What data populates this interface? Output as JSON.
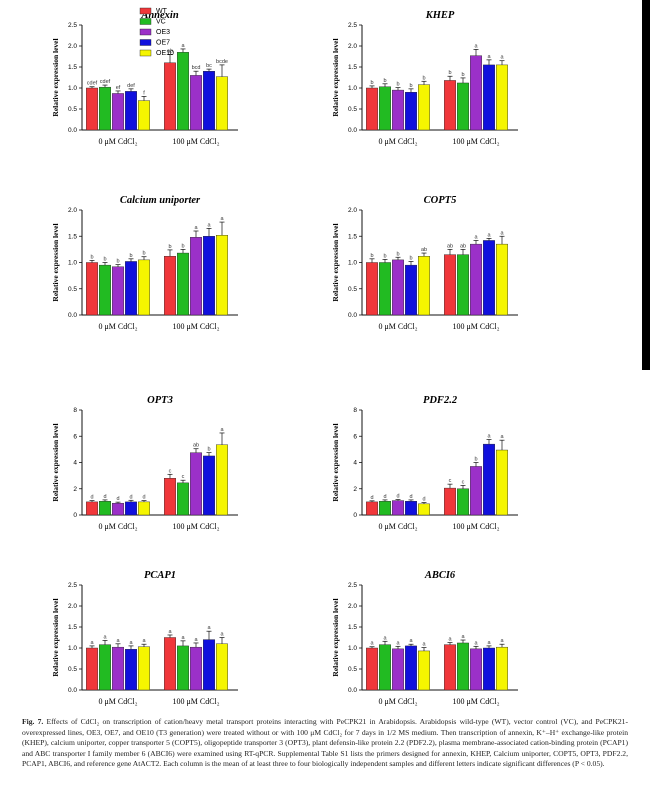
{
  "figure": {
    "legend": [
      {
        "label": "WT",
        "color": "#f0373a"
      },
      {
        "label": "VC",
        "color": "#22bb22"
      },
      {
        "label": "OE3",
        "color": "#9b30c8"
      },
      {
        "label": "OE7",
        "color": "#1010dd"
      },
      {
        "label": "OE10",
        "color": "#f5f500"
      }
    ],
    "caption": {
      "label": "Fig. 7.",
      "text": "Effects of CdCl₂ on transcription of cation/heavy metal transport proteins interacting with PeCPK21 in Arabidopsis. Arabidopsis wild-type (WT), vector control (VC), and PeCPK21-overexpressed lines, OE3, OE7, and OE10 (T3 generation) were treated without or with 100 μM CdCl₂ for 7 days in 1/2 MS medium. Then transcription of annexin, K⁺–H⁺ exchange-like protein (KHEP), calcium uniporter, copper transporter 5 (COPT5), oligopeptide transporter 3 (OPT3), plant defensin-like protein 2.2 (PDF2.2), plasma membrane-associated cation-binding protein (PCAP1) and ABC transporter I family member 6 (ABCI6) were examined using RT-qPCR. Supplemental Table S1 lists the primers designed for annexin, KHEP, Calcium uniporter, COPT5, OPT3, PDF2.2, PCAP1, ABCI6, and reference gene AtACT2. Each column is the mean of at least three to four biologically independent samples and different letters indicate significant differences (P < 0.05)."
    }
  },
  "chart_data": [
    {
      "type": "bar",
      "title": "Annexin",
      "ylabel": "Relative expression level",
      "categories": [
        "0 μM CdCl₂",
        "100 μM CdCl₂"
      ],
      "ylim": [
        0,
        2.5
      ],
      "yticks": [
        "0.0",
        "0.5",
        "1.0",
        "1.5",
        "2.0",
        "2.5"
      ],
      "series": [
        {
          "name": "WT",
          "values": [
            1.0,
            1.6
          ],
          "errors": [
            0.03,
            0.2
          ],
          "letters": [
            "cdef",
            "ab"
          ]
        },
        {
          "name": "VC",
          "values": [
            1.02,
            1.85
          ],
          "errors": [
            0.05,
            0.08
          ],
          "letters": [
            "cdef",
            "a"
          ]
        },
        {
          "name": "OE3",
          "values": [
            0.87,
            1.3
          ],
          "errors": [
            0.06,
            0.1
          ],
          "letters": [
            "ef",
            "bcd"
          ]
        },
        {
          "name": "OE7",
          "values": [
            0.92,
            1.4
          ],
          "errors": [
            0.06,
            0.05
          ],
          "letters": [
            "def",
            "bc"
          ]
        },
        {
          "name": "OE10",
          "values": [
            0.7,
            1.27
          ],
          "errors": [
            0.1,
            0.28
          ],
          "letters": [
            "f",
            "bcde"
          ]
        }
      ]
    },
    {
      "type": "bar",
      "title": "KHEP",
      "ylabel": "Relative expression level",
      "categories": [
        "0 μM CdCl₂",
        "100 μM CdCl₂"
      ],
      "ylim": [
        0,
        2.5
      ],
      "yticks": [
        "0.0",
        "0.5",
        "1.0",
        "1.5",
        "2.0",
        "2.5"
      ],
      "series": [
        {
          "name": "WT",
          "values": [
            1.0,
            1.18
          ],
          "errors": [
            0.05,
            0.1
          ],
          "letters": [
            "b",
            "b"
          ]
        },
        {
          "name": "VC",
          "values": [
            1.03,
            1.12
          ],
          "errors": [
            0.07,
            0.12
          ],
          "letters": [
            "b",
            "b"
          ]
        },
        {
          "name": "OE3",
          "values": [
            0.95,
            1.77
          ],
          "errors": [
            0.06,
            0.15
          ],
          "letters": [
            "b",
            "a"
          ]
        },
        {
          "name": "OE7",
          "values": [
            0.9,
            1.55
          ],
          "errors": [
            0.08,
            0.12
          ],
          "letters": [
            "b",
            "a"
          ]
        },
        {
          "name": "OE10",
          "values": [
            1.08,
            1.55
          ],
          "errors": [
            0.08,
            0.1
          ],
          "letters": [
            "b",
            "a"
          ]
        }
      ]
    },
    {
      "type": "bar",
      "title": "Calcium uniporter",
      "ylabel": "Relative expression level",
      "categories": [
        "0 μM CdCl₂",
        "100 μM CdCl₂"
      ],
      "ylim": [
        0,
        2.0
      ],
      "yticks": [
        "0.0",
        "0.5",
        "1.0",
        "1.5",
        "2.0"
      ],
      "series": [
        {
          "name": "WT",
          "values": [
            1.0,
            1.12
          ],
          "errors": [
            0.04,
            0.12
          ],
          "letters": [
            "b",
            "b"
          ]
        },
        {
          "name": "VC",
          "values": [
            0.95,
            1.18
          ],
          "errors": [
            0.05,
            0.07
          ],
          "letters": [
            "b",
            "b"
          ]
        },
        {
          "name": "OE3",
          "values": [
            0.92,
            1.48
          ],
          "errors": [
            0.04,
            0.12
          ],
          "letters": [
            "b",
            "a"
          ]
        },
        {
          "name": "OE7",
          "values": [
            1.02,
            1.5
          ],
          "errors": [
            0.05,
            0.15
          ],
          "letters": [
            "b",
            "a"
          ]
        },
        {
          "name": "OE10",
          "values": [
            1.05,
            1.52
          ],
          "errors": [
            0.06,
            0.25
          ],
          "letters": [
            "b",
            "a"
          ]
        }
      ]
    },
    {
      "type": "bar",
      "title": "COPT5",
      "ylabel": "Relative expression level",
      "categories": [
        "0 μM CdCl₂",
        "100 μM CdCl₂"
      ],
      "ylim": [
        0,
        2.0
      ],
      "yticks": [
        "0.0",
        "0.5",
        "1.0",
        "1.5",
        "2.0"
      ],
      "series": [
        {
          "name": "WT",
          "values": [
            1.0,
            1.15
          ],
          "errors": [
            0.07,
            0.1
          ],
          "letters": [
            "b",
            "ab"
          ]
        },
        {
          "name": "VC",
          "values": [
            1.0,
            1.15
          ],
          "errors": [
            0.06,
            0.1
          ],
          "letters": [
            "b",
            "ab"
          ]
        },
        {
          "name": "OE3",
          "values": [
            1.05,
            1.35
          ],
          "errors": [
            0.05,
            0.07
          ],
          "letters": [
            "b",
            "a"
          ]
        },
        {
          "name": "OE7",
          "values": [
            0.95,
            1.42
          ],
          "errors": [
            0.07,
            0.04
          ],
          "letters": [
            "b",
            "a"
          ]
        },
        {
          "name": "OE10",
          "values": [
            1.12,
            1.35
          ],
          "errors": [
            0.06,
            0.15
          ],
          "letters": [
            "ab",
            "a"
          ]
        }
      ]
    },
    {
      "type": "bar",
      "title": "OPT3",
      "ylabel": "Relative expression level",
      "categories": [
        "0 μM CdCl₂",
        "100 μM CdCl₂"
      ],
      "ylim": [
        0,
        8
      ],
      "yticks": [
        "0",
        "2",
        "4",
        "6",
        "8"
      ],
      "series": [
        {
          "name": "WT",
          "values": [
            1.0,
            2.8
          ],
          "errors": [
            0.1,
            0.3
          ],
          "letters": [
            "d",
            "c"
          ]
        },
        {
          "name": "VC",
          "values": [
            1.05,
            2.45
          ],
          "errors": [
            0.1,
            0.2
          ],
          "letters": [
            "d",
            "c"
          ]
        },
        {
          "name": "OE3",
          "values": [
            0.9,
            4.75
          ],
          "errors": [
            0.08,
            0.3
          ],
          "letters": [
            "d",
            "ab"
          ]
        },
        {
          "name": "OE7",
          "values": [
            1.0,
            4.5
          ],
          "errors": [
            0.12,
            0.25
          ],
          "letters": [
            "d",
            "b"
          ]
        },
        {
          "name": "OE10",
          "values": [
            1.0,
            5.35
          ],
          "errors": [
            0.1,
            0.9
          ],
          "letters": [
            "d",
            "a"
          ]
        }
      ]
    },
    {
      "type": "bar",
      "title": "PDF2.2",
      "ylabel": "Relative expression level",
      "categories": [
        "0 μM CdCl₂",
        "100 μM CdCl₂"
      ],
      "ylim": [
        0,
        8
      ],
      "yticks": [
        "0",
        "2",
        "4",
        "6",
        "8"
      ],
      "series": [
        {
          "name": "WT",
          "values": [
            1.0,
            2.05
          ],
          "errors": [
            0.08,
            0.3
          ],
          "letters": [
            "d",
            "c"
          ]
        },
        {
          "name": "VC",
          "values": [
            1.05,
            2.0
          ],
          "errors": [
            0.1,
            0.25
          ],
          "letters": [
            "d",
            "c"
          ]
        },
        {
          "name": "OE3",
          "values": [
            1.1,
            3.7
          ],
          "errors": [
            0.08,
            0.3
          ],
          "letters": [
            "d",
            "b"
          ]
        },
        {
          "name": "OE7",
          "values": [
            1.05,
            5.4
          ],
          "errors": [
            0.1,
            0.35
          ],
          "letters": [
            "d",
            "a"
          ]
        },
        {
          "name": "OE10",
          "values": [
            0.85,
            4.95
          ],
          "errors": [
            0.1,
            0.75
          ],
          "letters": [
            "d",
            "a"
          ]
        }
      ]
    },
    {
      "type": "bar",
      "title": "PCAP1",
      "ylabel": "Relative expression level",
      "categories": [
        "0 μM CdCl₂",
        "100 μM CdCl₂"
      ],
      "ylim": [
        0,
        2.5
      ],
      "yticks": [
        "0.0",
        "0.5",
        "1.0",
        "1.5",
        "2.0",
        "2.5"
      ],
      "series": [
        {
          "name": "WT",
          "values": [
            1.0,
            1.25
          ],
          "errors": [
            0.05,
            0.06
          ],
          "letters": [
            "a",
            "a"
          ]
        },
        {
          "name": "VC",
          "values": [
            1.08,
            1.05
          ],
          "errors": [
            0.1,
            0.12
          ],
          "letters": [
            "a",
            "a"
          ]
        },
        {
          "name": "OE3",
          "values": [
            1.02,
            1.02
          ],
          "errors": [
            0.08,
            0.1
          ],
          "letters": [
            "a",
            "a"
          ]
        },
        {
          "name": "OE7",
          "values": [
            0.97,
            1.2
          ],
          "errors": [
            0.08,
            0.2
          ],
          "letters": [
            "a",
            "a"
          ]
        },
        {
          "name": "OE10",
          "values": [
            1.03,
            1.1
          ],
          "errors": [
            0.06,
            0.15
          ],
          "letters": [
            "a",
            "a"
          ]
        }
      ]
    },
    {
      "type": "bar",
      "title": "ABCI6",
      "ylabel": "Relative expression level",
      "categories": [
        "0 μM CdCl₂",
        "100 μM CdCl₂"
      ],
      "ylim": [
        0,
        2.5
      ],
      "yticks": [
        "0.0",
        "0.5",
        "1.0",
        "1.5",
        "2.0",
        "2.5"
      ],
      "series": [
        {
          "name": "WT",
          "values": [
            1.0,
            1.08
          ],
          "errors": [
            0.03,
            0.05
          ],
          "letters": [
            "a",
            "a"
          ]
        },
        {
          "name": "VC",
          "values": [
            1.08,
            1.12
          ],
          "errors": [
            0.08,
            0.07
          ],
          "letters": [
            "a",
            "a"
          ]
        },
        {
          "name": "OE3",
          "values": [
            0.98,
            0.98
          ],
          "errors": [
            0.06,
            0.06
          ],
          "letters": [
            "a",
            "a"
          ]
        },
        {
          "name": "OE7",
          "values": [
            1.05,
            1.0
          ],
          "errors": [
            0.04,
            0.05
          ],
          "letters": [
            "a",
            "a"
          ]
        },
        {
          "name": "OE10",
          "values": [
            0.93,
            1.02
          ],
          "errors": [
            0.08,
            0.07
          ],
          "letters": [
            "a",
            "a"
          ]
        }
      ]
    }
  ]
}
